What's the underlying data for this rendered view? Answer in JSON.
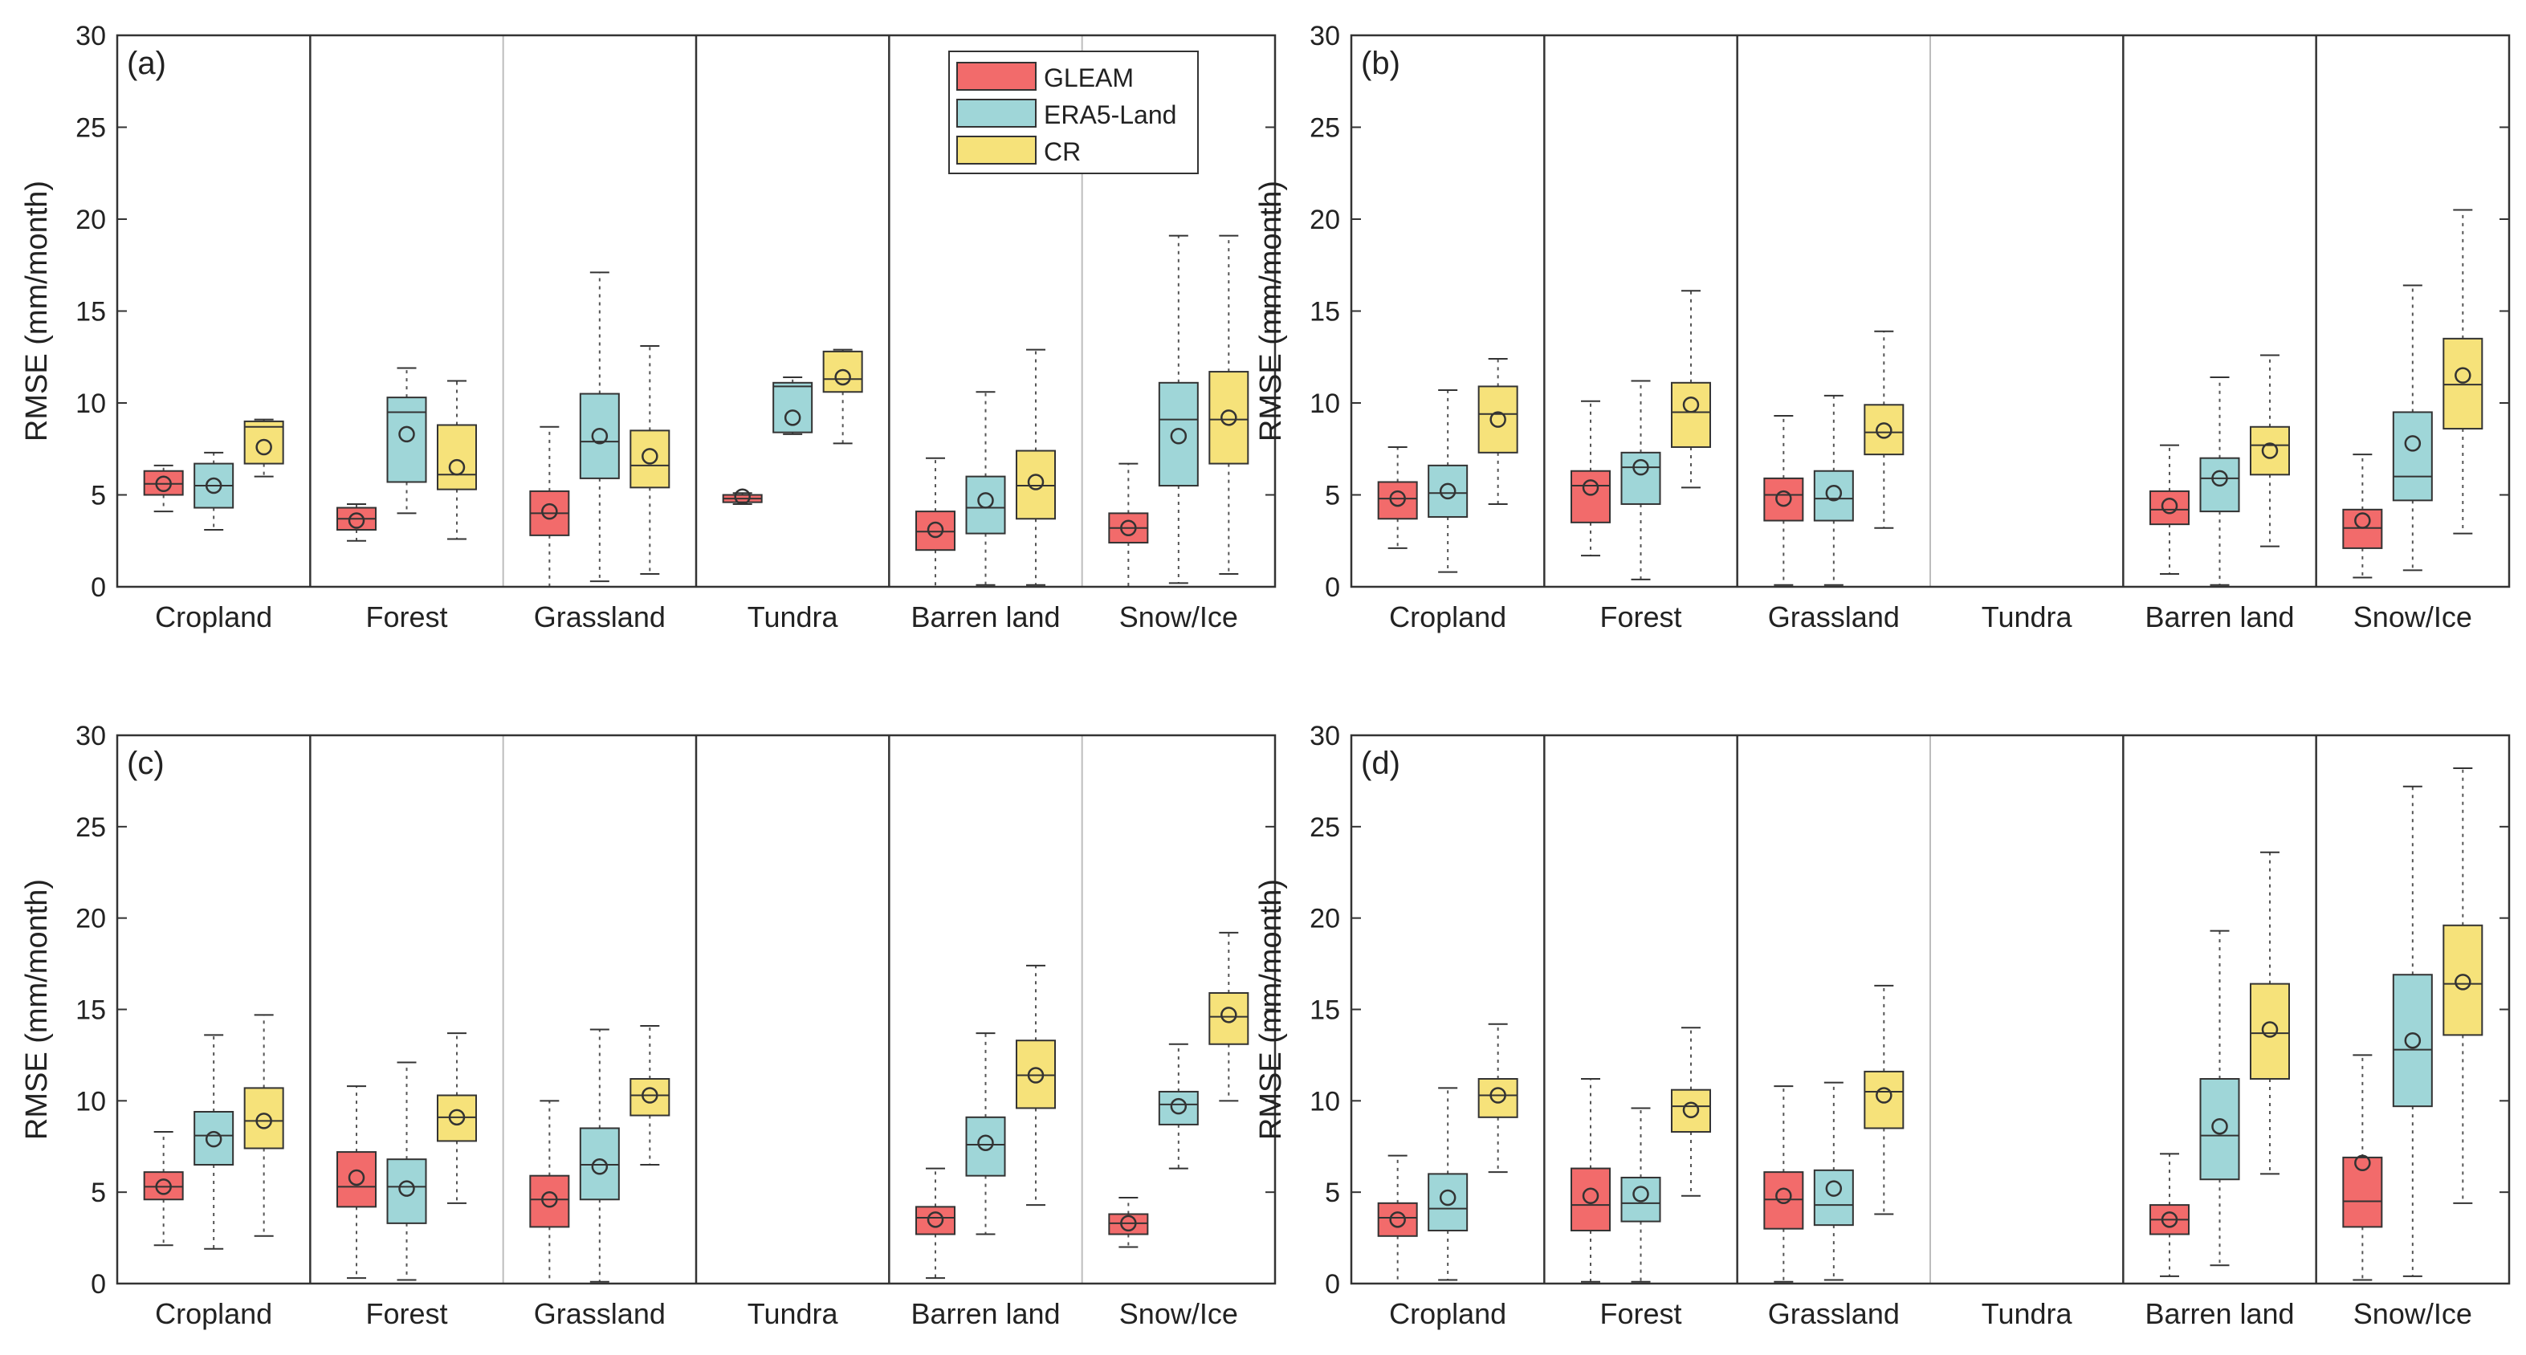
{
  "figure": {
    "categories": [
      "Cropland",
      "Forest",
      "Grassland",
      "Tundra",
      "Barren land",
      "Snow/Ice"
    ],
    "series_names": [
      "GLEAM",
      "ERA5-Land",
      "CR"
    ],
    "ylabel": "RMSE (mm/month)",
    "colors": {
      "GLEAM": "#f26b6b",
      "ERA5-Land": "#9fd6d8",
      "CR": "#f6e27a",
      "box_edge": "#333333",
      "axis": "#333333",
      "light_divider": "#bdbdbd"
    }
  },
  "legend": {
    "items": [
      "GLEAM",
      "ERA5-Land",
      "CR"
    ]
  },
  "chart_data": [
    {
      "panel_label": "(a)",
      "type": "boxplot",
      "ylabel": "RMSE (mm/month)",
      "ylim": [
        0,
        30
      ],
      "yticks": [
        0,
        5,
        10,
        15,
        20,
        25,
        30
      ],
      "categories": [
        "Cropland",
        "Forest",
        "Grassland",
        "Tundra",
        "Barren land",
        "Snow/Ice"
      ],
      "dividers": [
        "dark",
        "light",
        "dark",
        "dark",
        "light"
      ],
      "series": [
        {
          "name": "GLEAM",
          "boxes": [
            {
              "min": 4.1,
              "q1": 5.0,
              "median": 5.6,
              "q3": 6.3,
              "max": 6.6,
              "mean": 5.6
            },
            {
              "min": 2.5,
              "q1": 3.1,
              "median": 3.7,
              "q3": 4.3,
              "max": 4.5,
              "mean": 3.6
            },
            {
              "min": 0.0,
              "q1": 2.8,
              "median": 4.0,
              "q3": 5.2,
              "max": 8.7,
              "mean": 4.1
            },
            {
              "min": 4.5,
              "q1": 4.6,
              "median": 4.8,
              "q3": 5.0,
              "max": 5.1,
              "mean": 4.9
            },
            {
              "min": 0.0,
              "q1": 2.0,
              "median": 3.0,
              "q3": 4.1,
              "max": 7.0,
              "mean": 3.1
            },
            {
              "min": 0.0,
              "q1": 2.4,
              "median": 3.2,
              "q3": 4.0,
              "max": 6.7,
              "mean": 3.2
            }
          ]
        },
        {
          "name": "ERA5-Land",
          "boxes": [
            {
              "min": 3.1,
              "q1": 4.3,
              "median": 5.5,
              "q3": 6.7,
              "max": 7.3,
              "mean": 5.5
            },
            {
              "min": 4.0,
              "q1": 5.7,
              "median": 9.5,
              "q3": 10.3,
              "max": 11.9,
              "mean": 8.3
            },
            {
              "min": 0.3,
              "q1": 5.9,
              "median": 7.9,
              "q3": 10.5,
              "max": 17.1,
              "mean": 8.2
            },
            {
              "min": 8.3,
              "q1": 8.4,
              "median": 10.9,
              "q3": 11.1,
              "max": 11.4,
              "mean": 9.2
            },
            {
              "min": 0.1,
              "q1": 2.9,
              "median": 4.3,
              "q3": 6.0,
              "max": 10.6,
              "mean": 4.7
            },
            {
              "min": 0.2,
              "q1": 5.5,
              "median": 9.1,
              "q3": 11.1,
              "max": 19.1,
              "mean": 8.2
            }
          ]
        },
        {
          "name": "CR",
          "boxes": [
            {
              "min": 6.0,
              "q1": 6.7,
              "median": 8.7,
              "q3": 9.0,
              "max": 9.1,
              "mean": 7.6
            },
            {
              "min": 2.6,
              "q1": 5.3,
              "median": 6.1,
              "q3": 8.8,
              "max": 11.2,
              "mean": 6.5
            },
            {
              "min": 0.7,
              "q1": 5.4,
              "median": 6.6,
              "q3": 8.5,
              "max": 13.1,
              "mean": 7.1
            },
            {
              "min": 7.8,
              "q1": 10.6,
              "median": 11.3,
              "q3": 12.8,
              "max": 12.9,
              "mean": 11.4
            },
            {
              "min": 0.1,
              "q1": 3.7,
              "median": 5.5,
              "q3": 7.4,
              "max": 12.9,
              "mean": 5.7
            },
            {
              "min": 0.7,
              "q1": 6.7,
              "median": 9.1,
              "q3": 11.7,
              "max": 19.1,
              "mean": 9.2
            }
          ]
        }
      ]
    },
    {
      "panel_label": "(b)",
      "type": "boxplot",
      "ylabel": "RMSE (mm/month)",
      "ylim": [
        0,
        30
      ],
      "yticks": [
        0,
        5,
        10,
        15,
        20,
        25,
        30
      ],
      "categories": [
        "Cropland",
        "Forest",
        "Grassland",
        "Tundra",
        "Barren land",
        "Snow/Ice"
      ],
      "dividers": [
        "dark",
        "dark",
        "light",
        "dark",
        "dark"
      ],
      "series": [
        {
          "name": "GLEAM",
          "boxes": [
            {
              "min": 2.1,
              "q1": 3.7,
              "median": 4.8,
              "q3": 5.7,
              "max": 7.6,
              "mean": 4.8
            },
            {
              "min": 1.7,
              "q1": 3.5,
              "median": 5.5,
              "q3": 6.3,
              "max": 10.1,
              "mean": 5.4
            },
            {
              "min": 0.1,
              "q1": 3.6,
              "median": 5.0,
              "q3": 5.9,
              "max": 9.3,
              "mean": 4.8
            },
            null,
            {
              "min": 0.7,
              "q1": 3.4,
              "median": 4.2,
              "q3": 5.2,
              "max": 7.7,
              "mean": 4.4
            },
            {
              "min": 0.5,
              "q1": 2.1,
              "median": 3.2,
              "q3": 4.2,
              "max": 7.2,
              "mean": 3.6
            }
          ]
        },
        {
          "name": "ERA5-Land",
          "boxes": [
            {
              "min": 0.8,
              "q1": 3.8,
              "median": 5.1,
              "q3": 6.6,
              "max": 10.7,
              "mean": 5.2
            },
            {
              "min": 0.4,
              "q1": 4.5,
              "median": 6.5,
              "q3": 7.3,
              "max": 11.2,
              "mean": 6.5
            },
            {
              "min": 0.1,
              "q1": 3.6,
              "median": 4.8,
              "q3": 6.3,
              "max": 10.4,
              "mean": 5.1
            },
            null,
            {
              "min": 0.1,
              "q1": 4.1,
              "median": 5.9,
              "q3": 7.0,
              "max": 11.4,
              "mean": 5.9
            },
            {
              "min": 0.9,
              "q1": 4.7,
              "median": 6.0,
              "q3": 9.5,
              "max": 16.4,
              "mean": 7.8
            }
          ]
        },
        {
          "name": "CR",
          "boxes": [
            {
              "min": 4.5,
              "q1": 7.3,
              "median": 9.4,
              "q3": 10.9,
              "max": 12.4,
              "mean": 9.1
            },
            {
              "min": 5.4,
              "q1": 7.6,
              "median": 9.5,
              "q3": 11.1,
              "max": 16.1,
              "mean": 9.9
            },
            {
              "min": 3.2,
              "q1": 7.2,
              "median": 8.4,
              "q3": 9.9,
              "max": 13.9,
              "mean": 8.5
            },
            null,
            {
              "min": 2.2,
              "q1": 6.1,
              "median": 7.7,
              "q3": 8.7,
              "max": 12.6,
              "mean": 7.4
            },
            {
              "min": 2.9,
              "q1": 8.6,
              "median": 11.0,
              "q3": 13.5,
              "max": 20.5,
              "mean": 11.5
            }
          ]
        }
      ]
    },
    {
      "panel_label": "(c)",
      "type": "boxplot",
      "ylabel": "RMSE (mm/month)",
      "ylim": [
        0,
        30
      ],
      "yticks": [
        0,
        5,
        10,
        15,
        20,
        25,
        30
      ],
      "categories": [
        "Cropland",
        "Forest",
        "Grassland",
        "Tundra",
        "Barren land",
        "Snow/Ice"
      ],
      "dividers": [
        "dark",
        "light",
        "dark",
        "dark",
        "light"
      ],
      "series": [
        {
          "name": "GLEAM",
          "boxes": [
            {
              "min": 2.1,
              "q1": 4.6,
              "median": 5.3,
              "q3": 6.1,
              "max": 8.3,
              "mean": 5.3
            },
            {
              "min": 0.3,
              "q1": 4.2,
              "median": 5.3,
              "q3": 7.2,
              "max": 10.8,
              "mean": 5.8
            },
            {
              "min": 0.0,
              "q1": 3.1,
              "median": 4.6,
              "q3": 5.9,
              "max": 10.0,
              "mean": 4.6
            },
            null,
            {
              "min": 0.3,
              "q1": 2.7,
              "median": 3.6,
              "q3": 4.2,
              "max": 6.3,
              "mean": 3.5
            },
            {
              "min": 2.0,
              "q1": 2.7,
              "median": 3.3,
              "q3": 3.8,
              "max": 4.7,
              "mean": 3.3
            }
          ]
        },
        {
          "name": "ERA5-Land",
          "boxes": [
            {
              "min": 1.9,
              "q1": 6.5,
              "median": 8.1,
              "q3": 9.4,
              "max": 13.6,
              "mean": 7.9
            },
            {
              "min": 0.2,
              "q1": 3.3,
              "median": 5.3,
              "q3": 6.8,
              "max": 12.1,
              "mean": 5.2
            },
            {
              "min": 0.1,
              "q1": 4.6,
              "median": 6.5,
              "q3": 8.5,
              "max": 13.9,
              "mean": 6.4
            },
            null,
            {
              "min": 2.7,
              "q1": 5.9,
              "median": 7.6,
              "q3": 9.1,
              "max": 13.7,
              "mean": 7.7
            },
            {
              "min": 6.3,
              "q1": 8.7,
              "median": 9.8,
              "q3": 10.5,
              "max": 13.1,
              "mean": 9.7
            }
          ]
        },
        {
          "name": "CR",
          "boxes": [
            {
              "min": 2.6,
              "q1": 7.4,
              "median": 8.9,
              "q3": 10.7,
              "max": 14.7,
              "mean": 8.9
            },
            {
              "min": 4.4,
              "q1": 7.8,
              "median": 9.1,
              "q3": 10.3,
              "max": 13.7,
              "mean": 9.1
            },
            {
              "min": 6.5,
              "q1": 9.2,
              "median": 10.3,
              "q3": 11.2,
              "max": 14.1,
              "mean": 10.3
            },
            null,
            {
              "min": 4.3,
              "q1": 9.6,
              "median": 11.4,
              "q3": 13.3,
              "max": 17.4,
              "mean": 11.4
            },
            {
              "min": 10.0,
              "q1": 13.1,
              "median": 14.6,
              "q3": 15.9,
              "max": 19.2,
              "mean": 14.7
            }
          ]
        }
      ]
    },
    {
      "panel_label": "(d)",
      "type": "boxplot",
      "ylabel": "RMSE (mm/month)",
      "ylim": [
        0,
        30
      ],
      "yticks": [
        0,
        5,
        10,
        15,
        20,
        25,
        30
      ],
      "categories": [
        "Cropland",
        "Forest",
        "Grassland",
        "Tundra",
        "Barren land",
        "Snow/Ice"
      ],
      "dividers": [
        "dark",
        "dark",
        "light",
        "dark",
        "dark"
      ],
      "series": [
        {
          "name": "GLEAM",
          "boxes": [
            {
              "min": 0.0,
              "q1": 2.6,
              "median": 3.6,
              "q3": 4.4,
              "max": 7.0,
              "mean": 3.5
            },
            {
              "min": 0.1,
              "q1": 2.9,
              "median": 4.3,
              "q3": 6.3,
              "max": 11.2,
              "mean": 4.8
            },
            {
              "min": 0.1,
              "q1": 3.0,
              "median": 4.6,
              "q3": 6.1,
              "max": 10.8,
              "mean": 4.8
            },
            null,
            {
              "min": 0.4,
              "q1": 2.7,
              "median": 3.5,
              "q3": 4.3,
              "max": 7.1,
              "mean": 3.5
            },
            {
              "min": 0.2,
              "q1": 3.1,
              "median": 4.5,
              "q3": 6.9,
              "max": 12.5,
              "mean": 6.6
            }
          ]
        },
        {
          "name": "ERA5-Land",
          "boxes": [
            {
              "min": 0.2,
              "q1": 2.9,
              "median": 4.1,
              "q3": 6.0,
              "max": 10.7,
              "mean": 4.7
            },
            {
              "min": 0.1,
              "q1": 3.4,
              "median": 4.4,
              "q3": 5.8,
              "max": 9.6,
              "mean": 4.9
            },
            {
              "min": 0.2,
              "q1": 3.2,
              "median": 4.3,
              "q3": 6.2,
              "max": 11.0,
              "mean": 5.2
            },
            null,
            {
              "min": 1.0,
              "q1": 5.7,
              "median": 8.1,
              "q3": 11.2,
              "max": 19.3,
              "mean": 8.6
            },
            {
              "min": 0.4,
              "q1": 9.7,
              "median": 12.8,
              "q3": 16.9,
              "max": 27.2,
              "mean": 13.3
            }
          ]
        },
        {
          "name": "CR",
          "boxes": [
            {
              "min": 6.1,
              "q1": 9.1,
              "median": 10.3,
              "q3": 11.2,
              "max": 14.2,
              "mean": 10.3
            },
            {
              "min": 4.8,
              "q1": 8.3,
              "median": 9.7,
              "q3": 10.6,
              "max": 14.0,
              "mean": 9.5
            },
            {
              "min": 3.8,
              "q1": 8.5,
              "median": 10.5,
              "q3": 11.6,
              "max": 16.3,
              "mean": 10.3
            },
            null,
            {
              "min": 6.0,
              "q1": 11.2,
              "median": 13.7,
              "q3": 16.4,
              "max": 23.6,
              "mean": 13.9
            },
            {
              "min": 4.4,
              "q1": 13.6,
              "median": 16.4,
              "q3": 19.6,
              "max": 28.2,
              "mean": 16.5
            }
          ]
        }
      ]
    }
  ]
}
